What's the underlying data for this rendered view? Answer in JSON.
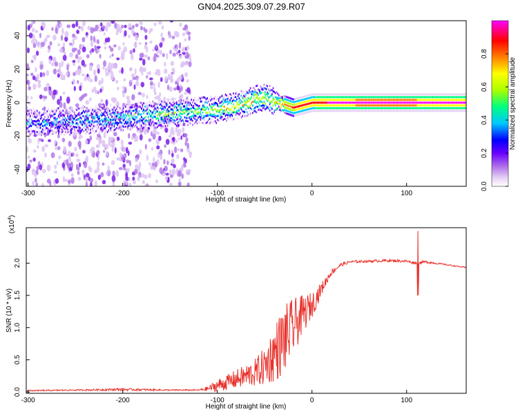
{
  "title": "GN04.2025.309.07.29.R07",
  "chart_data": [
    {
      "type": "heatmap",
      "title": "GN04.2025.309.07.29.R07",
      "xlabel": "Height of straight line (km)",
      "ylabel": "Frequency (Hz)",
      "xlim": [
        -302,
        163
      ],
      "ylim": [
        -50,
        49
      ],
      "x_ticks": [
        -300,
        -200,
        -100,
        0,
        100
      ],
      "x_tick_labels": [
        "-300",
        "-200",
        "-100",
        "0",
        "100"
      ],
      "y_ticks": [
        -40,
        -20,
        0,
        20,
        40
      ],
      "y_tick_labels": [
        "-40",
        "-20",
        "0",
        "20",
        "40"
      ],
      "colorbar": {
        "label": "Normalized spectral amplitude",
        "range": [
          0,
          1
        ],
        "ticks": [
          0.0,
          0.2,
          0.4,
          0.6,
          0.8
        ],
        "tick_labels": [
          "0.0",
          "0.2",
          "0.4",
          "0.6",
          "0.8"
        ],
        "colormap": [
          "#ffffff",
          "#d8b8f0",
          "#8a2be2",
          "#5a00ff",
          "#0000ff",
          "#00c8ff",
          "#00ff80",
          "#aaff00",
          "#ffff00",
          "#ff8000",
          "#ff0000",
          "#ff00ff"
        ]
      },
      "ridge": {
        "description_points_x": [
          -300,
          -250,
          -200,
          -150,
          -120,
          -100,
          -80,
          -60,
          -50,
          -40,
          -30,
          -20,
          0,
          50,
          100,
          163
        ],
        "frequency_hz": [
          -12,
          -11,
          -9,
          -6,
          -5,
          -4,
          -2,
          2,
          3,
          1,
          -1,
          -3,
          0,
          0,
          0,
          0
        ],
        "amplitude": [
          0.25,
          0.3,
          0.35,
          0.45,
          0.5,
          0.55,
          0.6,
          0.6,
          0.55,
          0.6,
          0.7,
          0.8,
          0.85,
          0.95,
          0.95,
          0.9
        ]
      },
      "noise_region_x": [
        -302,
        -128
      ]
    },
    {
      "type": "line",
      "xlabel": "Height of straight line (km)",
      "ylabel": "SNR (10 * v/v)",
      "multiplier_label": "(x10",
      "multiplier_exp": "4",
      "multiplier_close": ")",
      "xlim": [
        -302,
        163
      ],
      "ylim": [
        -0.02,
        2.55
      ],
      "x_ticks": [
        -300,
        -200,
        -100,
        0,
        100
      ],
      "x_tick_labels": [
        "-300",
        "-200",
        "-100",
        "0",
        "100"
      ],
      "y_ticks": [
        0.0,
        0.5,
        1.0,
        1.5,
        2.0
      ],
      "y_tick_labels": [
        "0.0",
        "0.5",
        "1.0",
        "1.5",
        "2.0"
      ],
      "series": [
        {
          "name": "SNR",
          "color": "#e8302a",
          "x": [
            -302,
            -250,
            -200,
            -150,
            -120,
            -110,
            -100,
            -90,
            -80,
            -70,
            -60,
            -50,
            -40,
            -30,
            -20,
            -10,
            0,
            10,
            20,
            30,
            40,
            60,
            80,
            100,
            110,
            120,
            140,
            163
          ],
          "y": [
            0.02,
            0.03,
            0.04,
            0.03,
            0.03,
            0.05,
            0.1,
            0.15,
            0.2,
            0.25,
            0.3,
            0.4,
            0.6,
            0.8,
            1.0,
            1.2,
            1.35,
            1.6,
            1.85,
            1.97,
            2.02,
            2.03,
            2.04,
            2.03,
            2.0,
            2.02,
            1.98,
            1.93
          ],
          "noise_amplitude": [
            0.01,
            0.01,
            0.02,
            0.01,
            0.01,
            0.04,
            0.1,
            0.12,
            0.15,
            0.18,
            0.22,
            0.3,
            0.45,
            0.55,
            0.45,
            0.3,
            0.2,
            0.1,
            0.05,
            0.03,
            0.02,
            0.02,
            0.02,
            0.02,
            0.02,
            0.02,
            0.01,
            0.01
          ]
        }
      ],
      "spike": {
        "x": 112,
        "y_max": 2.5,
        "y_min": 1.5
      }
    }
  ]
}
